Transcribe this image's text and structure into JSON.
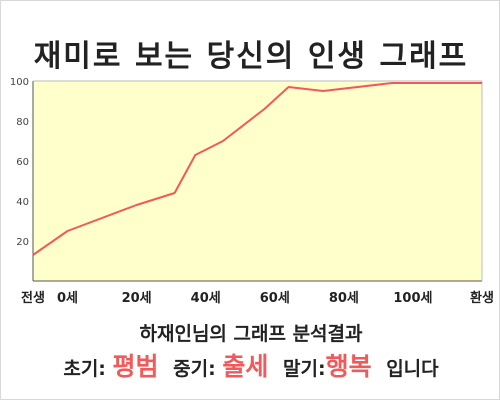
{
  "title": "재미로 보는 당신의 인생 그래프",
  "summary": "하재인님의 그래프 분석결과",
  "phases": {
    "early_label": "초기:",
    "early_value": "평범",
    "middle_label": "중기:",
    "middle_value": "출세",
    "late_label": "말기:",
    "late_value": "행복",
    "ending": "입니다"
  },
  "colors": {
    "line": "#f05a5a",
    "fill": "#ffffcc",
    "highlight": "#f05a5a"
  },
  "chart_data": {
    "type": "area",
    "title": "",
    "xlabel": "",
    "ylabel": "",
    "ylim": [
      0,
      100
    ],
    "yticks": [
      20,
      40,
      60,
      80,
      100
    ],
    "xticks": [
      {
        "age": -10,
        "label": "전생"
      },
      {
        "age": 0,
        "label": "0세"
      },
      {
        "age": 20,
        "label": "20세"
      },
      {
        "age": 40,
        "label": "40세"
      },
      {
        "age": 60,
        "label": "60세"
      },
      {
        "age": 80,
        "label": "80세"
      },
      {
        "age": 100,
        "label": "100세"
      },
      {
        "age": 120,
        "label": "환생"
      }
    ],
    "grid": false,
    "series": [
      {
        "points": [
          {
            "x": -10,
            "y": 13
          },
          {
            "x": 0,
            "y": 25
          },
          {
            "x": 20,
            "y": 38
          },
          {
            "x": 31,
            "y": 44
          },
          {
            "x": 37,
            "y": 63
          },
          {
            "x": 45,
            "y": 70
          },
          {
            "x": 57,
            "y": 86
          },
          {
            "x": 64,
            "y": 97
          },
          {
            "x": 74,
            "y": 95
          },
          {
            "x": 94,
            "y": 99
          },
          {
            "x": 120,
            "y": 99
          }
        ]
      }
    ]
  }
}
